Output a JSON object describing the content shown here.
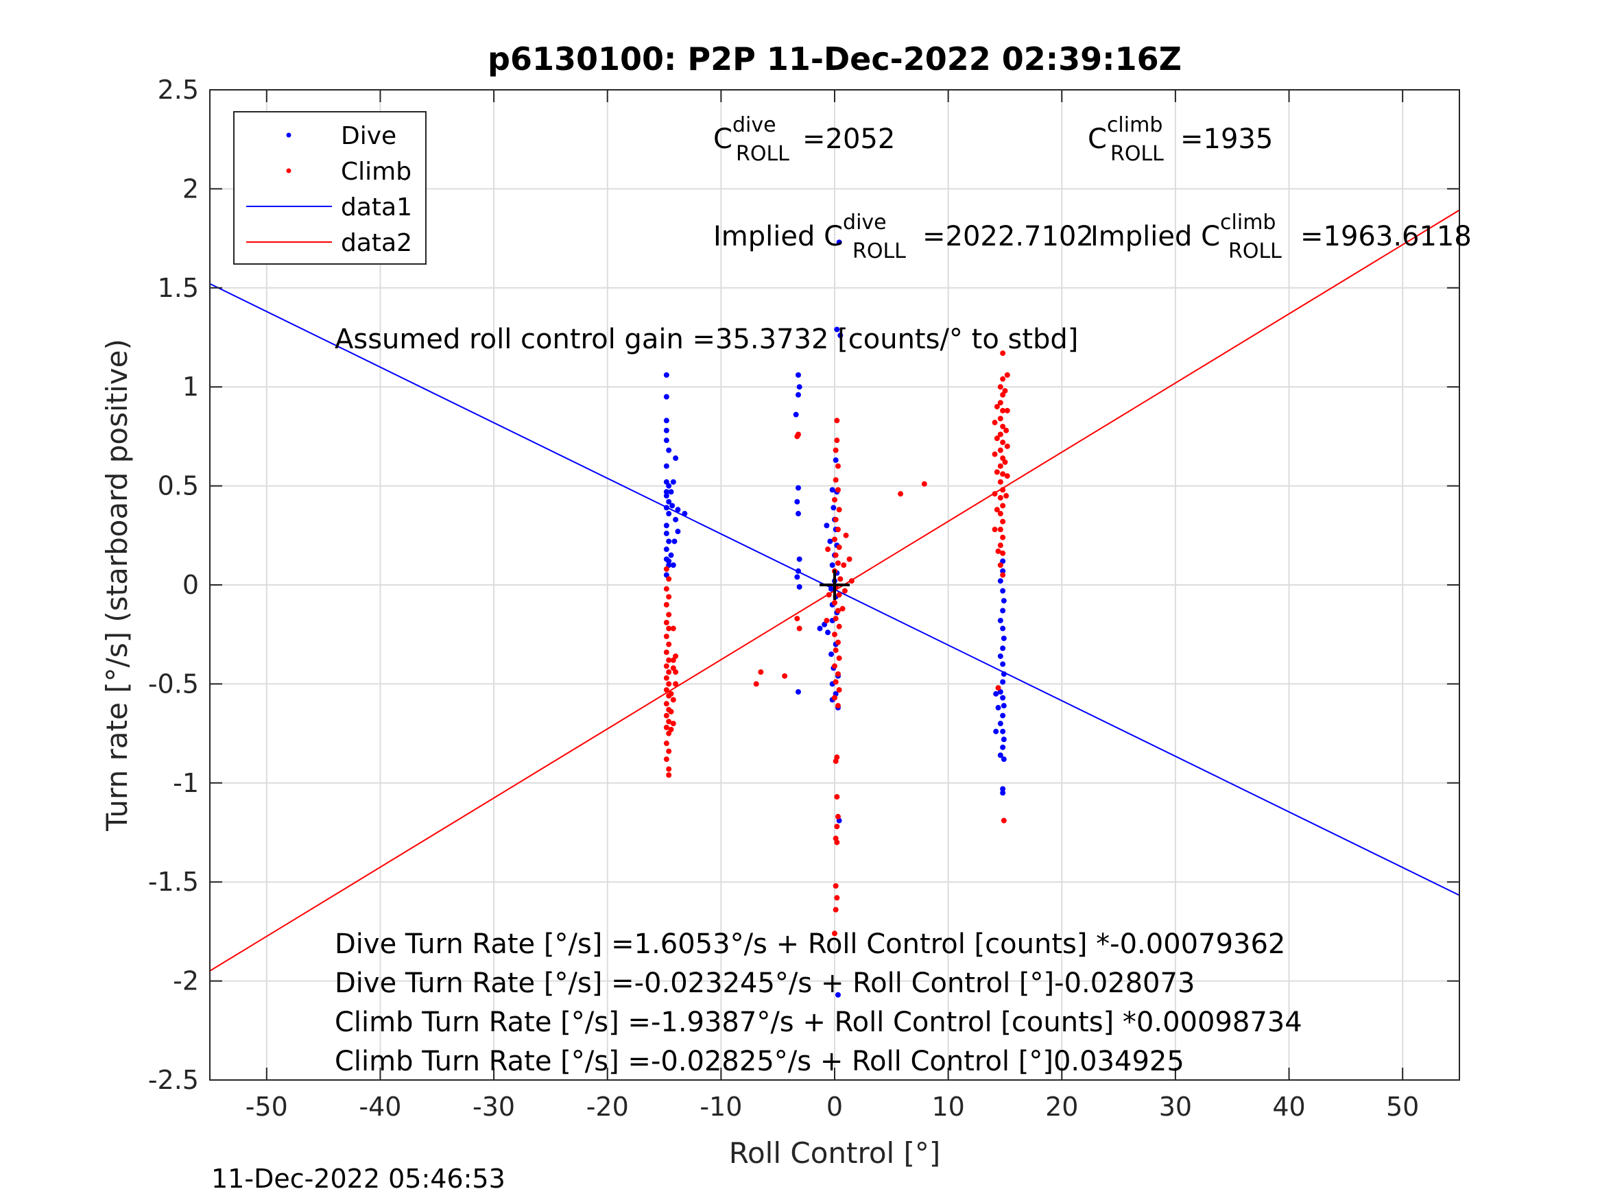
{
  "chart_data": {
    "type": "scatter",
    "title": "p6130100: P2P 11-Dec-2022 02:39:16Z",
    "xlabel": "Roll Control [°]",
    "ylabel": "Turn rate [°/s] (starboard positive)",
    "xlim": [
      -55,
      55
    ],
    "ylim": [
      -2.5,
      2.5
    ],
    "xticks": [
      -50,
      -40,
      -30,
      -20,
      -10,
      0,
      10,
      20,
      30,
      40,
      50
    ],
    "xtick_labels": [
      "-50",
      "-40",
      "-30",
      "-20",
      "-10",
      "0",
      "10",
      "20",
      "30",
      "40",
      "50"
    ],
    "yticks": [
      -2.5,
      -2,
      -1.5,
      -1,
      -0.5,
      0,
      0.5,
      1,
      1.5,
      2,
      2.5
    ],
    "ytick_labels": [
      "-2.5",
      "-2",
      "-1.5",
      "-1",
      "-0.5",
      "0",
      "0.5",
      "1",
      "1.5",
      "2",
      "2.5"
    ],
    "grid": true,
    "legend_position": "top-left",
    "series": [
      {
        "name": "Dive",
        "kind": "points",
        "color": "#0000ff",
        "points": [
          [
            -14.8,
            1.06
          ],
          [
            -14.8,
            0.95
          ],
          [
            -14.8,
            0.83
          ],
          [
            -14.8,
            0.78
          ],
          [
            -14.8,
            0.73
          ],
          [
            -14.6,
            0.68
          ],
          [
            -14.8,
            0.6
          ],
          [
            -14.8,
            0.52
          ],
          [
            -14.6,
            0.5
          ],
          [
            -14.8,
            0.47
          ],
          [
            -14.8,
            0.45
          ],
          [
            -14.6,
            0.42
          ],
          [
            -14.8,
            0.39
          ],
          [
            -14.6,
            0.36
          ],
          [
            -14.8,
            0.3
          ],
          [
            -14.8,
            0.26
          ],
          [
            -14.6,
            0.22
          ],
          [
            -14.8,
            0.18
          ],
          [
            -14.8,
            0.13
          ],
          [
            -14.6,
            0.1
          ],
          [
            -14.8,
            0.05
          ],
          [
            -14.0,
            0.64
          ],
          [
            -14.2,
            0.52
          ],
          [
            -14.4,
            0.47
          ],
          [
            -14.3,
            0.4
          ],
          [
            -13.8,
            0.38
          ],
          [
            -13.2,
            0.36
          ],
          [
            -14.0,
            0.33
          ],
          [
            -13.8,
            0.27
          ],
          [
            -14.1,
            0.22
          ],
          [
            -14.4,
            0.15
          ],
          [
            -14.6,
            0.12
          ],
          [
            -14.2,
            0.1
          ],
          [
            -3.2,
            1.06
          ],
          [
            -3.1,
            1.0
          ],
          [
            -3.2,
            0.96
          ],
          [
            -3.4,
            0.86
          ],
          [
            -3.2,
            0.49
          ],
          [
            -3.3,
            0.42
          ],
          [
            -3.2,
            0.36
          ],
          [
            -3.1,
            0.13
          ],
          [
            -3.2,
            0.07
          ],
          [
            -3.3,
            0.04
          ],
          [
            -3.1,
            -0.01
          ],
          [
            -3.2,
            -0.54
          ],
          [
            0.4,
            1.73
          ],
          [
            0.2,
            1.29
          ],
          [
            0.5,
            1.26
          ],
          [
            0.1,
            0.63
          ],
          [
            -0.2,
            0.48
          ],
          [
            0.2,
            0.47
          ],
          [
            -0.1,
            0.39
          ],
          [
            0.0,
            0.33
          ],
          [
            0.1,
            0.28
          ],
          [
            -0.7,
            0.3
          ],
          [
            -0.4,
            0.22
          ],
          [
            0.2,
            0.2
          ],
          [
            0.0,
            0.15
          ],
          [
            -0.2,
            0.1
          ],
          [
            0.2,
            0.06
          ],
          [
            0.0,
            0.02
          ],
          [
            -0.3,
            -0.02
          ],
          [
            0.1,
            -0.06
          ],
          [
            -0.2,
            -0.1
          ],
          [
            0.2,
            -0.14
          ],
          [
            -1.3,
            -0.22
          ],
          [
            -0.9,
            -0.2
          ],
          [
            -0.6,
            -0.24
          ],
          [
            -0.2,
            -0.18
          ],
          [
            0.1,
            -0.3
          ],
          [
            -0.3,
            -0.35
          ],
          [
            -0.1,
            -0.42
          ],
          [
            0.3,
            -0.46
          ],
          [
            -0.2,
            -0.5
          ],
          [
            0.1,
            -0.55
          ],
          [
            -0.2,
            -0.58
          ],
          [
            0.3,
            -0.62
          ],
          [
            0.4,
            -1.19
          ],
          [
            0.3,
            -2.07
          ],
          [
            14.8,
            0.12
          ],
          [
            14.8,
            0.07
          ],
          [
            14.6,
            0.02
          ],
          [
            14.8,
            -0.03
          ],
          [
            14.9,
            -0.08
          ],
          [
            14.8,
            -0.13
          ],
          [
            14.6,
            -0.18
          ],
          [
            14.8,
            -0.22
          ],
          [
            14.9,
            -0.27
          ],
          [
            14.8,
            -0.32
          ],
          [
            14.6,
            -0.36
          ],
          [
            14.8,
            -0.4
          ],
          [
            14.9,
            -0.45
          ],
          [
            14.8,
            -0.49
          ],
          [
            14.6,
            -0.54
          ],
          [
            14.8,
            -0.57
          ],
          [
            14.9,
            -0.61
          ],
          [
            14.8,
            -0.66
          ],
          [
            14.6,
            -0.7
          ],
          [
            14.8,
            -0.74
          ],
          [
            14.9,
            -0.78
          ],
          [
            14.8,
            -0.82
          ],
          [
            14.6,
            -0.86
          ],
          [
            14.9,
            -0.88
          ],
          [
            14.8,
            -1.03
          ],
          [
            14.8,
            -1.05
          ],
          [
            14.2,
            -0.55
          ],
          [
            14.4,
            -0.62
          ],
          [
            14.2,
            -0.74
          ]
        ]
      },
      {
        "name": "Climb",
        "kind": "points",
        "color": "#ff0000",
        "points": [
          [
            -14.8,
            0.08
          ],
          [
            -14.6,
            0.03
          ],
          [
            -14.8,
            -0.02
          ],
          [
            -14.6,
            -0.06
          ],
          [
            -14.8,
            -0.1
          ],
          [
            -14.6,
            -0.15
          ],
          [
            -14.8,
            -0.19
          ],
          [
            -14.6,
            -0.22
          ],
          [
            -14.8,
            -0.26
          ],
          [
            -14.6,
            -0.3
          ],
          [
            -14.8,
            -0.34
          ],
          [
            -14.6,
            -0.38
          ],
          [
            -14.8,
            -0.41
          ],
          [
            -14.6,
            -0.44
          ],
          [
            -14.8,
            -0.47
          ],
          [
            -14.6,
            -0.5
          ],
          [
            -14.8,
            -0.53
          ],
          [
            -14.6,
            -0.56
          ],
          [
            -14.8,
            -0.6
          ],
          [
            -14.6,
            -0.63
          ],
          [
            -14.8,
            -0.66
          ],
          [
            -14.6,
            -0.69
          ],
          [
            -14.8,
            -0.72
          ],
          [
            -14.6,
            -0.75
          ],
          [
            -14.8,
            -0.8
          ],
          [
            -14.6,
            -0.84
          ],
          [
            -14.8,
            -0.88
          ],
          [
            -14.6,
            -0.93
          ],
          [
            -14.6,
            -0.96
          ],
          [
            -14.2,
            -0.22
          ],
          [
            -14.0,
            -0.36
          ],
          [
            -14.2,
            -0.42
          ],
          [
            -14.0,
            -0.5
          ],
          [
            -14.2,
            -0.58
          ],
          [
            -14.4,
            -0.64
          ],
          [
            -14.2,
            -0.7
          ],
          [
            -14.4,
            -0.73
          ],
          [
            -14.2,
            -0.38
          ],
          [
            -14.0,
            -0.44
          ],
          [
            -14.4,
            -0.55
          ],
          [
            -3.2,
            0.76
          ],
          [
            -3.3,
            0.75
          ],
          [
            -3.3,
            -0.17
          ],
          [
            -3.1,
            -0.22
          ],
          [
            -6.5,
            -0.44
          ],
          [
            -6.9,
            -0.5
          ],
          [
            -4.4,
            -0.46
          ],
          [
            0.2,
            0.83
          ],
          [
            0.2,
            0.73
          ],
          [
            0.1,
            0.68
          ],
          [
            0.3,
            0.6
          ],
          [
            0.1,
            0.53
          ],
          [
            0.3,
            0.48
          ],
          [
            0.0,
            0.43
          ],
          [
            0.4,
            0.38
          ],
          [
            0.1,
            0.33
          ],
          [
            0.3,
            0.28
          ],
          [
            0.0,
            0.23
          ],
          [
            0.4,
            0.19
          ],
          [
            0.1,
            0.15
          ],
          [
            0.3,
            0.11
          ],
          [
            0.0,
            0.07
          ],
          [
            0.5,
            0.03
          ],
          [
            0.1,
            -0.01
          ],
          [
            0.4,
            -0.05
          ],
          [
            0.0,
            -0.09
          ],
          [
            0.3,
            -0.13
          ],
          [
            0.1,
            -0.17
          ],
          [
            0.4,
            -0.21
          ],
          [
            0.0,
            -0.25
          ],
          [
            0.3,
            -0.29
          ],
          [
            0.1,
            -0.33
          ],
          [
            0.4,
            -0.37
          ],
          [
            0.0,
            -0.41
          ],
          [
            0.3,
            -0.45
          ],
          [
            0.1,
            -0.49
          ],
          [
            0.4,
            -0.53
          ],
          [
            0.0,
            -0.57
          ],
          [
            0.3,
            -0.61
          ],
          [
            1.0,
            0.25
          ],
          [
            0.8,
            0.1
          ],
          [
            1.3,
            0.13
          ],
          [
            1.5,
            0.02
          ],
          [
            0.9,
            -0.03
          ],
          [
            0.7,
            -0.12
          ],
          [
            -0.6,
            0.18
          ],
          [
            -0.5,
            -0.05
          ],
          [
            -0.7,
            -0.18
          ],
          [
            0.2,
            -0.87
          ],
          [
            0.1,
            -0.89
          ],
          [
            0.2,
            -1.07
          ],
          [
            0.3,
            -1.17
          ],
          [
            0.2,
            -1.22
          ],
          [
            0.1,
            -1.28
          ],
          [
            0.2,
            -1.3
          ],
          [
            0.1,
            -1.52
          ],
          [
            0.2,
            -1.58
          ],
          [
            0.1,
            -1.64
          ],
          [
            0.0,
            -1.76
          ],
          [
            5.8,
            0.46
          ],
          [
            7.9,
            0.51
          ],
          [
            14.8,
            1.17
          ],
          [
            14.8,
            1.04
          ],
          [
            14.6,
            1.0
          ],
          [
            14.8,
            0.96
          ],
          [
            14.6,
            0.92
          ],
          [
            14.8,
            0.88
          ],
          [
            14.6,
            0.84
          ],
          [
            14.8,
            0.8
          ],
          [
            14.6,
            0.76
          ],
          [
            14.8,
            0.72
          ],
          [
            14.6,
            0.68
          ],
          [
            14.8,
            0.64
          ],
          [
            14.6,
            0.6
          ],
          [
            14.8,
            0.56
          ],
          [
            14.6,
            0.52
          ],
          [
            14.8,
            0.48
          ],
          [
            14.6,
            0.44
          ],
          [
            14.8,
            0.4
          ],
          [
            14.6,
            0.36
          ],
          [
            14.8,
            0.32
          ],
          [
            14.6,
            0.28
          ],
          [
            14.8,
            0.24
          ],
          [
            14.6,
            0.2
          ],
          [
            14.8,
            0.16
          ],
          [
            14.6,
            0.1
          ],
          [
            14.8,
            0.05
          ],
          [
            15.2,
            1.06
          ],
          [
            15.0,
            0.98
          ],
          [
            15.2,
            0.88
          ],
          [
            15.1,
            0.78
          ],
          [
            15.2,
            0.7
          ],
          [
            15.0,
            0.62
          ],
          [
            15.2,
            0.55
          ],
          [
            15.1,
            0.45
          ],
          [
            14.3,
            0.9
          ],
          [
            14.1,
            0.82
          ],
          [
            14.3,
            0.74
          ],
          [
            14.1,
            0.66
          ],
          [
            14.3,
            0.57
          ],
          [
            14.1,
            0.46
          ],
          [
            14.3,
            0.38
          ],
          [
            14.1,
            0.28
          ],
          [
            14.4,
            0.17
          ],
          [
            14.4,
            -0.52
          ],
          [
            14.9,
            -1.19
          ]
        ]
      },
      {
        "name": "data1",
        "kind": "line",
        "color": "#0000ff",
        "intercept": -0.023245,
        "slope": -0.028073,
        "x": [
          -55,
          55
        ]
      },
      {
        "name": "data2",
        "kind": "line",
        "color": "#ff0000",
        "intercept": -0.02825,
        "slope": 0.034925,
        "x": [
          -55,
          55
        ]
      }
    ],
    "marker": {
      "x": 0,
      "y": 0,
      "symbol": "+",
      "color": "#000000"
    },
    "annotations": {
      "c_dive": {
        "base": "C",
        "sup": "dive",
        "sub": "ROLL",
        "value": "=2052"
      },
      "c_climb": {
        "base": "C",
        "sup": "climb",
        "sub": "ROLL",
        "value": "=1935"
      },
      "implied_dive": {
        "prefix": "Implied C",
        "sup": "dive",
        "sub": "ROLL",
        "value": "=2022.7102"
      },
      "implied_climb": {
        "prefix": "Implied C",
        "sup": "climb",
        "sub": "ROLL",
        "value": "=1963.6118"
      },
      "gain": "Assumed roll control gain =35.3732 [counts/° to stbd]",
      "eq1": "Dive Turn Rate [°/s] =1.6053°/s + Roll Control [counts] *-0.00079362",
      "eq2": "Dive Turn Rate [°/s] =-0.023245°/s + Roll Control [°]-0.028073",
      "eq3": "Climb Turn Rate [°/s] =-1.9387°/s + Roll Control [counts] *0.00098734",
      "eq4": "Climb Turn Rate [°/s] =-0.02825°/s + Roll Control [°]0.034925"
    }
  },
  "timestamp": "11-Dec-2022 05:46:53"
}
